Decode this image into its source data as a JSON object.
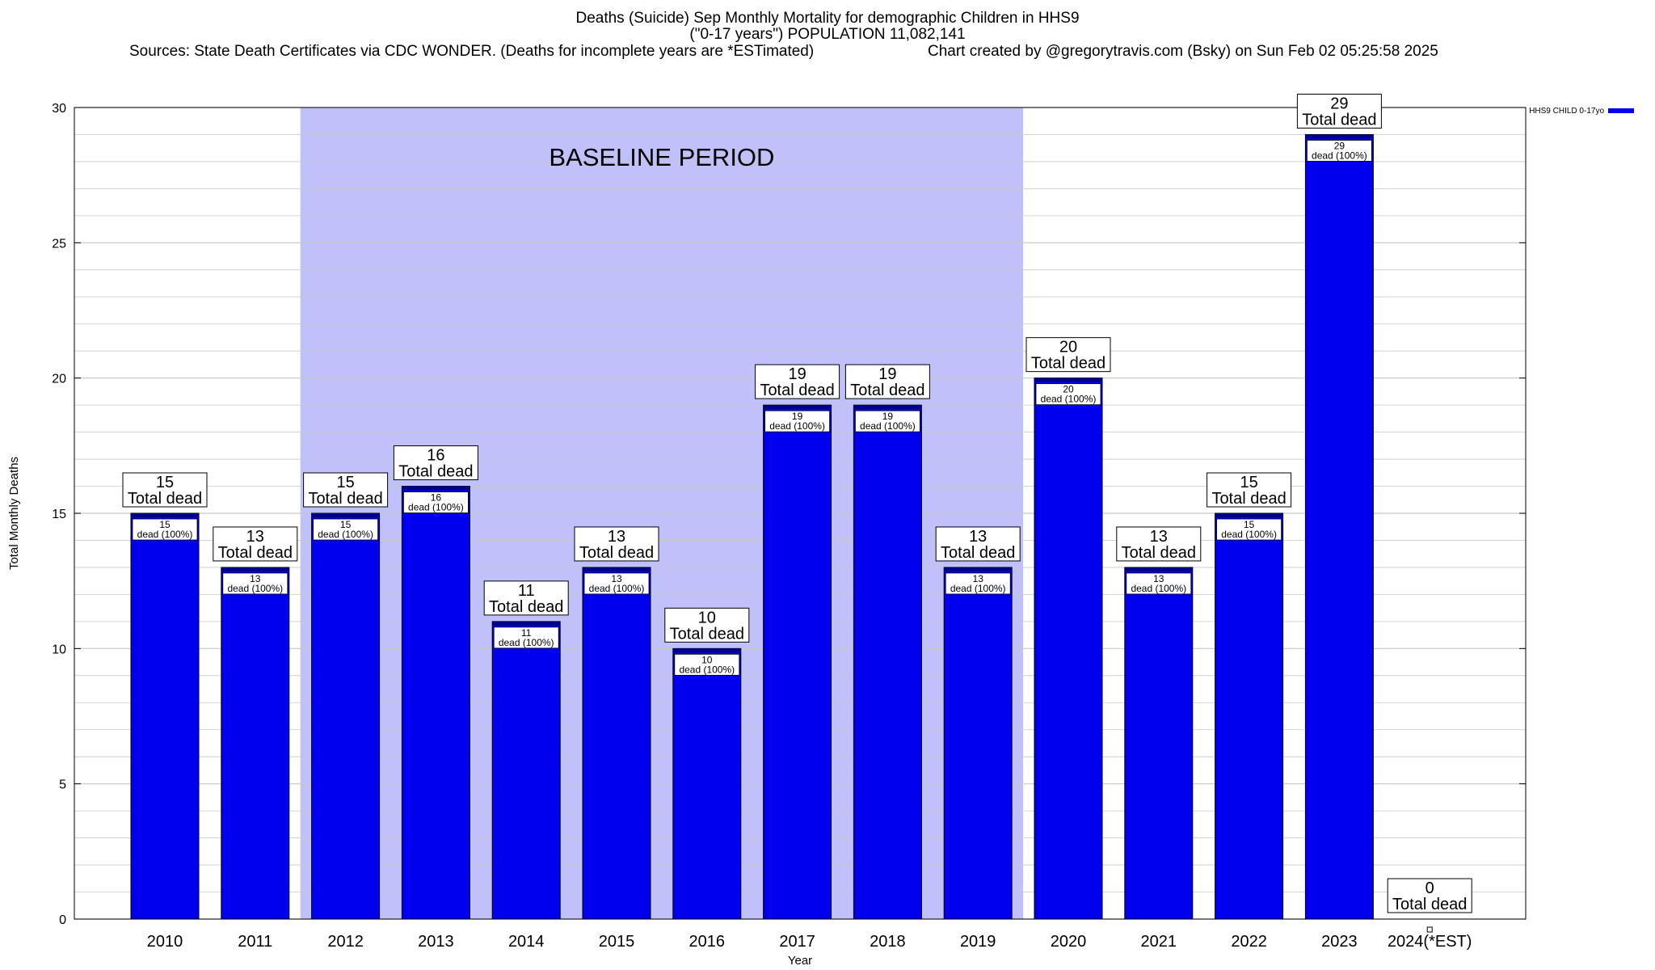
{
  "title_lines": [
    "Deaths (Suicide) Sep Monthly Mortality for demographic Children in HHS9",
    "(\"0-17 years\") POPULATION 11,082,141"
  ],
  "source_line": "Sources: State Death Certificates via CDC WONDER. (Deaths for incomplete years are *ESTimated)",
  "credit_line": "Chart created by @gregorytravis.com (Bsky) on Sun Feb 02 05:25:58 2025",
  "colors": {
    "bar": "#0000ee",
    "bar_cap": "#00008b",
    "baseline_band": "#c0c0fa",
    "grid": "#c8c8c8"
  },
  "chart_data": {
    "type": "bar",
    "title": "Deaths (Suicide) Sep Monthly Mortality for demographic Children in HHS9",
    "xlabel": "Year",
    "ylabel": "Total Monthly Deaths",
    "ylim": [
      0,
      30
    ],
    "yticks": [
      0,
      5,
      10,
      15,
      20,
      25,
      30
    ],
    "grid": true,
    "legend_position": "top-right",
    "categories": [
      "2010",
      "2011",
      "2012",
      "2013",
      "2014",
      "2015",
      "2016",
      "2017",
      "2018",
      "2019",
      "2020",
      "2021",
      "2022",
      "2023",
      "2024(*EST)"
    ],
    "series": [
      {
        "name": "HHS9 CHILD 0-17yo",
        "values": [
          15,
          13,
          15,
          16,
          11,
          13,
          10,
          19,
          19,
          13,
          20,
          13,
          15,
          29,
          0
        ]
      }
    ],
    "total_label": "Total dead",
    "inner_label": "dead (100%)",
    "annotation": {
      "text": "BASELINE PERIOD",
      "from": "2012",
      "to": "2019"
    }
  }
}
